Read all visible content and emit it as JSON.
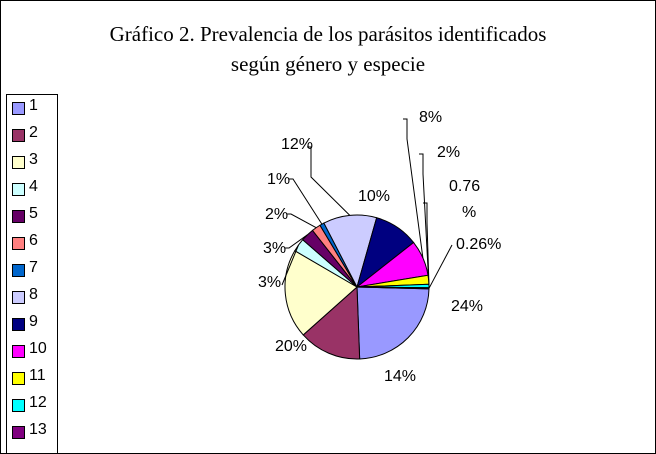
{
  "chart_data": {
    "type": "pie",
    "title": "Gráfico 2. Prevalencia de los parásitos identificados según género y especie",
    "title_lines": [
      "Gráfico 2. Prevalencia de los parásitos identificados",
      "según género y especie"
    ],
    "legend_position": "left",
    "categories": [
      "1",
      "2",
      "3",
      "4",
      "5",
      "6",
      "7",
      "8",
      "9",
      "10",
      "11",
      "12",
      "13"
    ],
    "values": [
      24,
      14,
      20,
      3,
      3,
      2,
      1,
      12,
      10,
      8,
      2,
      0.76,
      0.26
    ],
    "labels": [
      "24%",
      "14%",
      "20%",
      "3%",
      "3%",
      "2%",
      "1%",
      "12%",
      "10%",
      "8%",
      "2%",
      "0.76 %",
      "0.26%"
    ],
    "colors": [
      "#9999FF",
      "#993366",
      "#FFFFCC",
      "#CCFFFF",
      "#660066",
      "#FF8080",
      "#0066CC",
      "#CCCCFF",
      "#000080",
      "#FF00FF",
      "#FFFF00",
      "#00FFFF",
      "#800080"
    ]
  }
}
